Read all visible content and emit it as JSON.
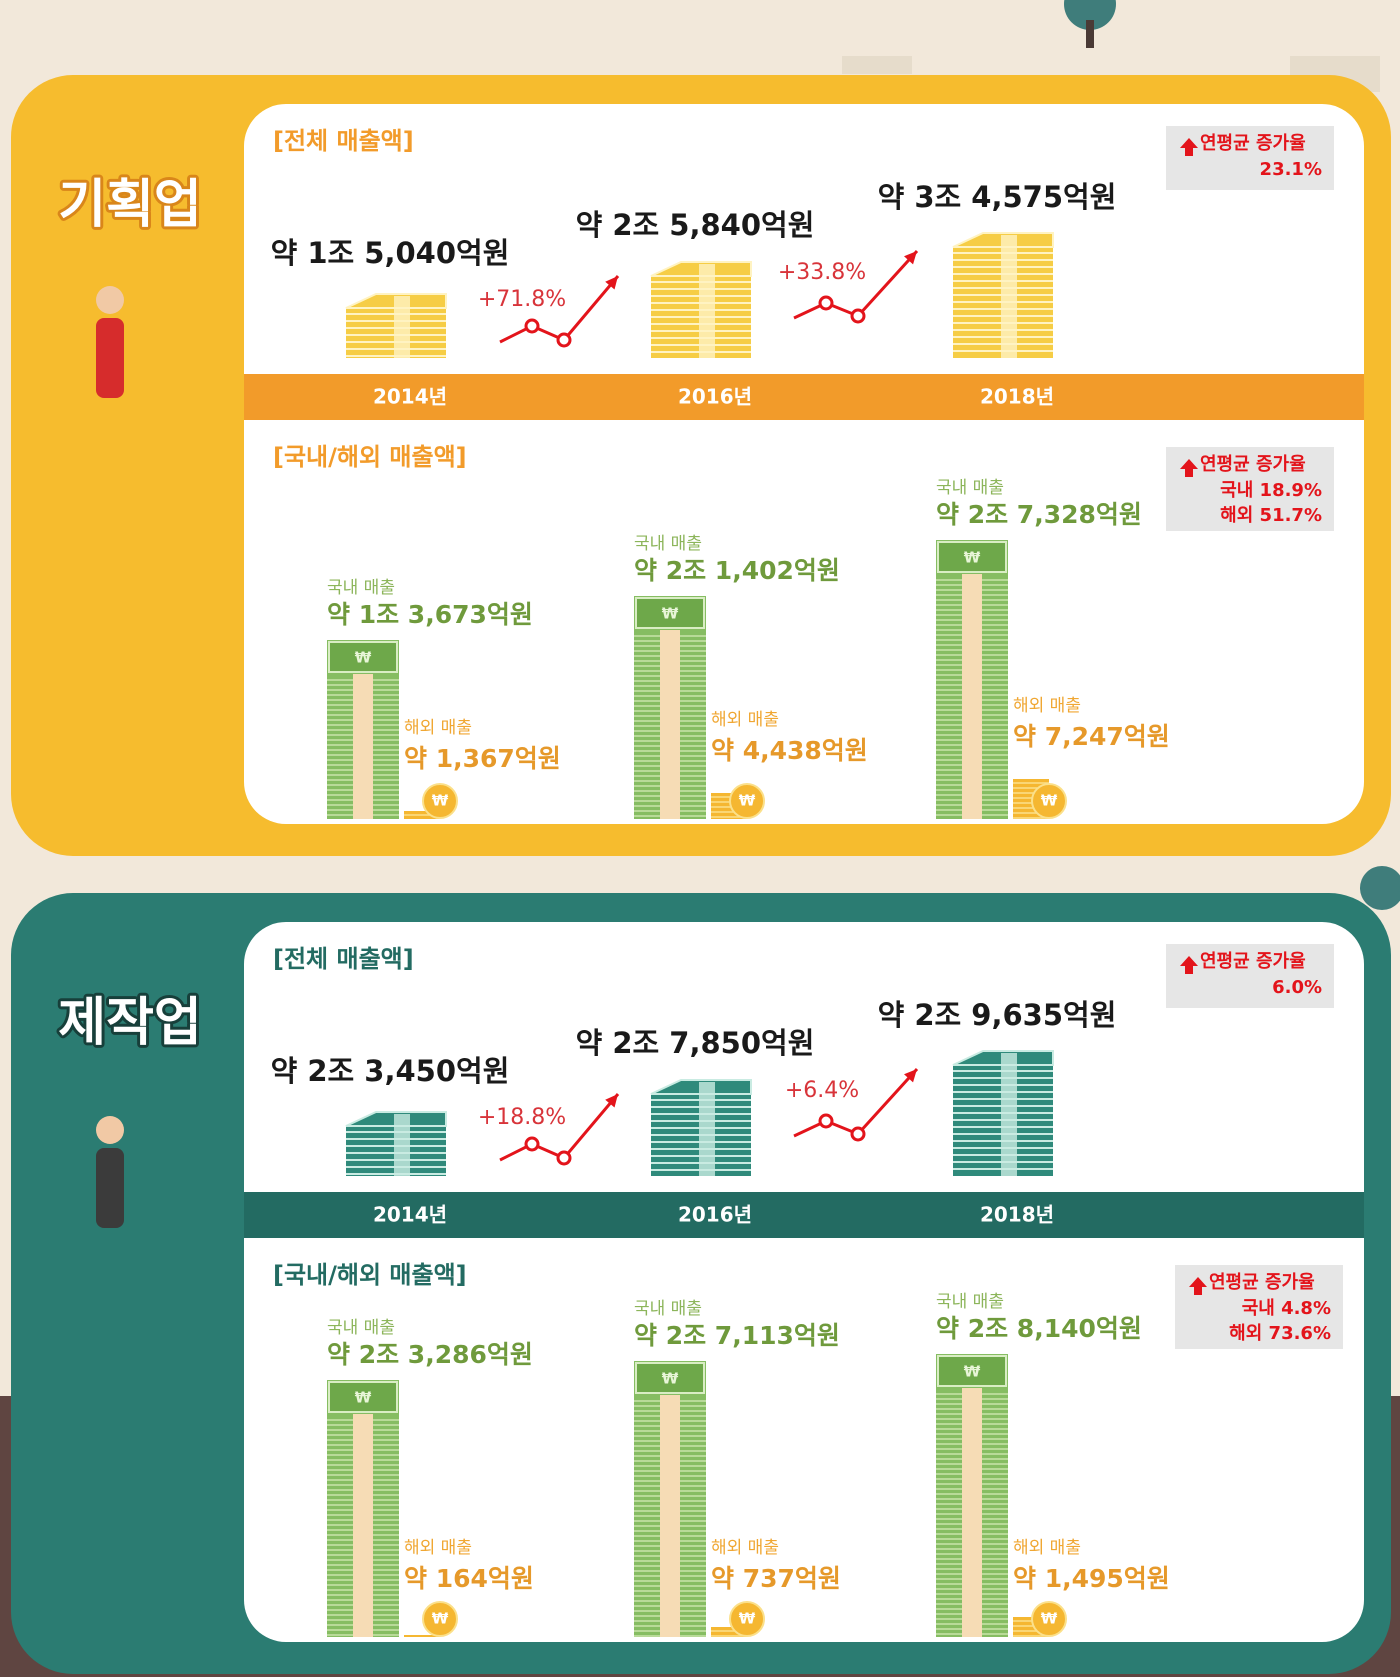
{
  "currency_symbol": "₩",
  "sections": [
    {
      "title": "기획업",
      "total": {
        "heading": "[전체 매출액]",
        "rate": {
          "label": "연평균 증가율",
          "values": [
            "23.1%"
          ]
        },
        "years": [
          "2014년",
          "2016년",
          "2018년"
        ],
        "amounts": [
          "약 1조 5,040억원",
          "약 2조 5,840억원",
          "약 3조 4,575억원"
        ],
        "growth": [
          "+71.8%",
          "+33.8%"
        ]
      },
      "split": {
        "heading": "[국내/해외 매출액]",
        "rate": {
          "label": "연평균 증가율",
          "values": [
            "국내 18.9%",
            "해외 51.7%"
          ]
        },
        "items": [
          {
            "domestic_label": "국내 매출",
            "domestic": "약 1조 3,673억원",
            "overseas_label": "해외 매출",
            "overseas": "약 1,367억원"
          },
          {
            "domestic_label": "국내 매출",
            "domestic": "약 2조 1,402억원",
            "overseas_label": "해외 매출",
            "overseas": "약 4,438억원"
          },
          {
            "domestic_label": "국내 매출",
            "domestic": "약 2조 7,328억원",
            "overseas_label": "해외 매출",
            "overseas": "약 7,247억원"
          }
        ]
      }
    },
    {
      "title": "제작업",
      "total": {
        "heading": "[전체 매출액]",
        "rate": {
          "label": "연평균 증가율",
          "values": [
            "6.0%"
          ]
        },
        "years": [
          "2014년",
          "2016년",
          "2018년"
        ],
        "amounts": [
          "약 2조 3,450억원",
          "약 2조 7,850억원",
          "약 2조 9,635억원"
        ],
        "growth": [
          "+18.8%",
          "+6.4%"
        ]
      },
      "split": {
        "heading": "[국내/해외 매출액]",
        "rate": {
          "label": "연평균 증가율",
          "values": [
            "국내 4.8%",
            "해외 73.6%"
          ]
        },
        "items": [
          {
            "domestic_label": "국내 매출",
            "domestic": "약 2조 3,286억원",
            "overseas_label": "해외 매출",
            "overseas": "약 164억원"
          },
          {
            "domestic_label": "국내 매출",
            "domestic": "약 2조 7,113억원",
            "overseas_label": "해외 매출",
            "overseas": "약 737억원"
          },
          {
            "domestic_label": "국내 매출",
            "domestic": "약 2조 8,140억원",
            "overseas_label": "해외 매출",
            "overseas": "약 1,495억원"
          }
        ]
      }
    }
  ]
}
